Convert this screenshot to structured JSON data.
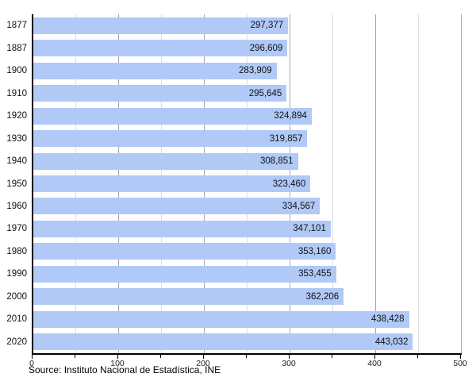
{
  "chart_data": {
    "type": "bar",
    "orientation": "horizontal",
    "title": "",
    "xlabel": "",
    "ylabel": "",
    "categories": [
      "1877",
      "1887",
      "1900",
      "1910",
      "1920",
      "1930",
      "1940",
      "1950",
      "1960",
      "1970",
      "1980",
      "1990",
      "2000",
      "2010",
      "2020"
    ],
    "values": [
      297377,
      296609,
      283909,
      295645,
      324894,
      319857,
      308851,
      323460,
      334567,
      347101,
      353160,
      353455,
      362206,
      438428,
      443032
    ],
    "value_labels": [
      "297,377",
      "296,609",
      "283,909",
      "295,645",
      "324,894",
      "319,857",
      "308,851",
      "323,460",
      "334,567",
      "347,101",
      "353,160",
      "353,455",
      "362,206",
      "438,428",
      "443,032"
    ],
    "xlim": [
      0,
      500000
    ],
    "x_tick_labels": [
      "0",
      "100",
      "200",
      "300",
      "400",
      "500"
    ],
    "x_tick_step": 100000,
    "x_minor_tick_step": 50000,
    "grid": "vertical",
    "legend": "none",
    "source": "Source: Instituto Nacional de Estadística, INE"
  },
  "colors": {
    "bar": "#b1c9f7",
    "axis": "#000000",
    "grid_major": "#a8a8a8",
    "grid_minor": "#dddddd",
    "text": "#111111",
    "background": "#ffffff"
  }
}
